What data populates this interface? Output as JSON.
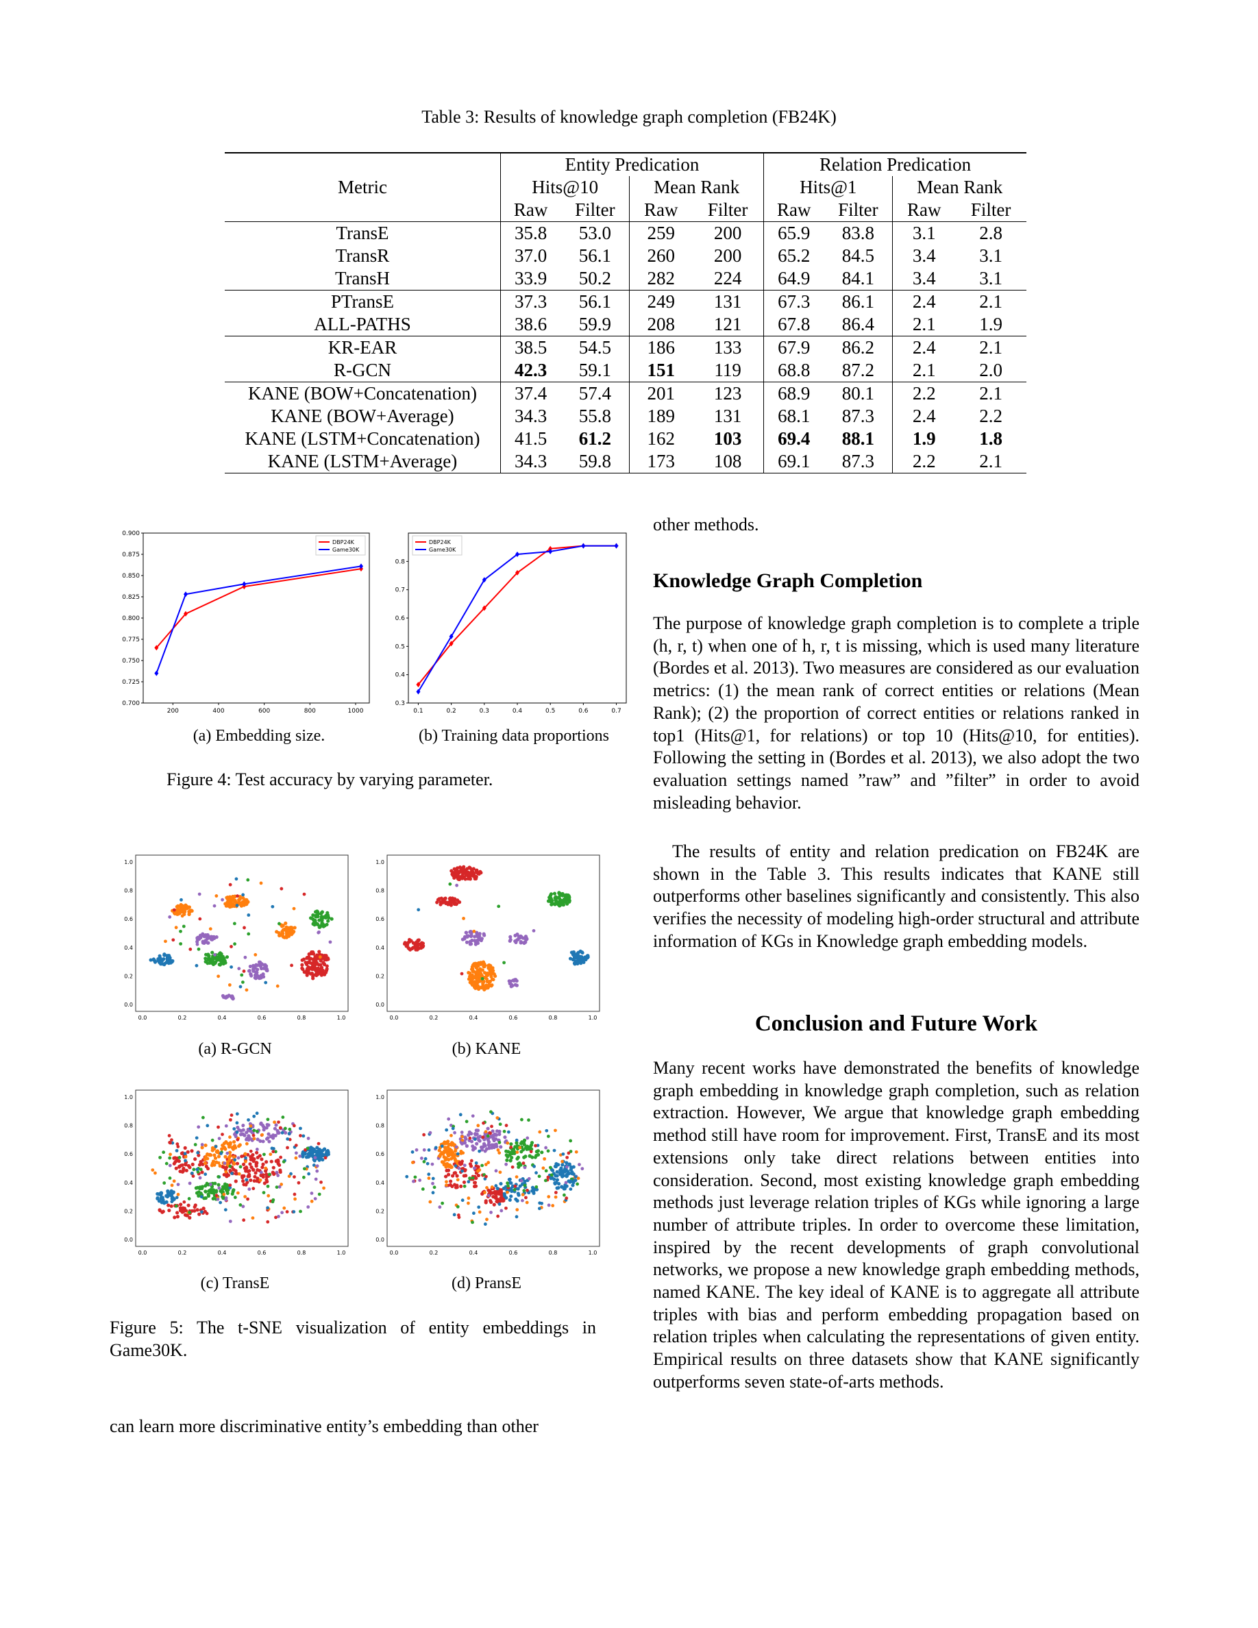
{
  "table": {
    "caption": "Table 3: Results of knowledge graph completion (FB24K)",
    "metric_label": "Metric",
    "group_entity": "Entity Predication",
    "group_relation": "Relation Predication",
    "sub_hits10": "Hits@10",
    "sub_meanrank": "Mean Rank",
    "sub_hits1": "Hits@1",
    "raw": "Raw",
    "filter": "Filter",
    "rows": [
      {
        "name": "TransE",
        "v": [
          "35.8",
          "53.0",
          "259",
          "200",
          "65.9",
          "83.8",
          "3.1",
          "2.8"
        ]
      },
      {
        "name": "TransR",
        "v": [
          "37.0",
          "56.1",
          "260",
          "200",
          "65.2",
          "84.5",
          "3.4",
          "3.1"
        ]
      },
      {
        "name": "TransH",
        "v": [
          "33.9",
          "50.2",
          "282",
          "224",
          "64.9",
          "84.1",
          "3.4",
          "3.1"
        ]
      },
      {
        "name": "PTransE",
        "v": [
          "37.3",
          "56.1",
          "249",
          "131",
          "67.3",
          "86.1",
          "2.4",
          "2.1"
        ]
      },
      {
        "name": "ALL-PATHS",
        "v": [
          "38.6",
          "59.9",
          "208",
          "121",
          "67.8",
          "86.4",
          "2.1",
          "1.9"
        ]
      },
      {
        "name": "KR-EAR",
        "v": [
          "38.5",
          "54.5",
          "186",
          "133",
          "67.9",
          "86.2",
          "2.4",
          "2.1"
        ]
      },
      {
        "name": "R-GCN",
        "v": [
          "42.3",
          "59.1",
          "151",
          "119",
          "68.8",
          "87.2",
          "2.1",
          "2.0"
        ]
      },
      {
        "name": "KANE (BOW+Concatenation)",
        "v": [
          "37.4",
          "57.4",
          "201",
          "123",
          "68.9",
          "80.1",
          "2.2",
          "2.1"
        ]
      },
      {
        "name": "KANE (BOW+Average)",
        "v": [
          "34.3",
          "55.8",
          "189",
          "131",
          "68.1",
          "87.3",
          "2.4",
          "2.2"
        ]
      },
      {
        "name": "KANE (LSTM+Concatenation)",
        "v": [
          "41.5",
          "61.2",
          "162",
          "103",
          "69.4",
          "88.1",
          "1.9",
          "1.8"
        ]
      },
      {
        "name": "KANE (LSTM+Average)",
        "v": [
          "34.3",
          "59.8",
          "173",
          "108",
          "69.1",
          "87.3",
          "2.2",
          "2.1"
        ]
      }
    ]
  },
  "figure4": {
    "caption": "Figure 4: Test accuracy by varying parameter.",
    "sub_a": "(a) Embedding size.",
    "sub_b": "(b) Training data proportions"
  },
  "chart_data": [
    {
      "type": "line",
      "x": [
        128,
        256,
        512,
        1024
      ],
      "series": [
        {
          "name": "DBP24K",
          "values": [
            0.765,
            0.805,
            0.837,
            0.858
          ],
          "color": "#ff0000"
        },
        {
          "name": "Game30K",
          "values": [
            0.735,
            0.828,
            0.84,
            0.861
          ],
          "color": "#0000ff"
        }
      ],
      "xticks": [
        "200",
        "400",
        "600",
        "800",
        "1000"
      ],
      "yticks": [
        "0.700",
        "0.725",
        "0.750",
        "0.775",
        "0.800",
        "0.825",
        "0.850",
        "0.875",
        "0.900"
      ],
      "xlim": [
        70,
        1060
      ],
      "ylim": [
        0.7,
        0.9
      ],
      "legend": "top-right"
    },
    {
      "type": "line",
      "x": [
        0.1,
        0.2,
        0.3,
        0.4,
        0.5,
        0.6,
        0.7
      ],
      "series": [
        {
          "name": "DBP24K",
          "values": [
            0.365,
            0.51,
            0.635,
            0.76,
            0.845,
            0.855,
            0.855
          ],
          "color": "#ff0000"
        },
        {
          "name": "Game30K",
          "values": [
            0.34,
            0.535,
            0.735,
            0.825,
            0.835,
            0.855,
            0.855
          ],
          "color": "#0000ff"
        }
      ],
      "xticks": [
        "0.1",
        "0.2",
        "0.3",
        "0.4",
        "0.5",
        "0.6",
        "0.7"
      ],
      "yticks": [
        "0.3",
        "0.4",
        "0.5",
        "0.6",
        "0.7",
        "0.8"
      ],
      "xlim": [
        0.07,
        0.73
      ],
      "ylim": [
        0.3,
        0.9
      ],
      "legend": "top-left"
    }
  ],
  "figure5": {
    "caption": "Figure 5: The t-SNE visualization of entity embeddings in Game30K.",
    "sub_a": "(a) R-GCN",
    "sub_b": "(b) KANE",
    "sub_c": "(c) TransE",
    "sub_d": "(d) PransE",
    "xticks": [
      "0.0",
      "0.2",
      "0.4",
      "0.6",
      "0.8",
      "1.0"
    ],
    "yticks": [
      "0.0",
      "0.2",
      "0.4",
      "0.6",
      "0.8",
      "1.0"
    ],
    "colors": [
      "#1f77b4",
      "#ff7f0e",
      "#2ca02c",
      "#d62728",
      "#9467bd"
    ]
  },
  "left_text": "can learn more discriminative entity’s embedding than other",
  "right": {
    "top_line": "other methods.",
    "kgc_heading": "Knowledge Graph Completion",
    "kgc_p1": "The purpose of knowledge graph completion is to complete a triple (h, r, t) when one of h, r, t is missing, which is used many literature (Bordes et al. 2013). Two measures are considered as our evaluation metrics: (1) the mean rank of correct entities or relations (Mean Rank); (2) the proportion of correct entities or relations ranked in top1 (Hits@1, for relations) or top 10 (Hits@10, for entities). Following the setting in (Bordes et al. 2013), we also adopt the two evaluation settings named ”raw” and ”filter” in order to avoid misleading behavior.",
    "kgc_p2": "The results of entity and relation predication on FB24K are shown in the Table 3. This results indicates that KANE still outperforms other baselines significantly and consistently. This also verifies the necessity of modeling high-order structural and attribute information of KGs in Knowledge graph embedding models.",
    "concl_heading": "Conclusion and Future Work",
    "concl_p": "Many recent works have demonstrated the benefits of knowledge graph embedding in knowledge graph completion, such as relation extraction. However, We argue that knowledge graph embedding method still have room for improvement. First, TransE and its most extensions only take direct relations between entities into consideration. Second, most existing knowledge graph embedding methods just leverage relation triples of KGs while ignoring a large number of attribute triples. In order to overcome these limitation, inspired by the recent developments of graph convolutional networks, we propose a new knowledge graph embedding methods, named KANE. The key ideal of KANE is to aggregate all attribute triples with bias and perform embedding propagation based on relation triples when calculating the representations of given entity. Empirical results on three datasets show that KANE significantly outperforms seven state-of-arts methods."
  }
}
